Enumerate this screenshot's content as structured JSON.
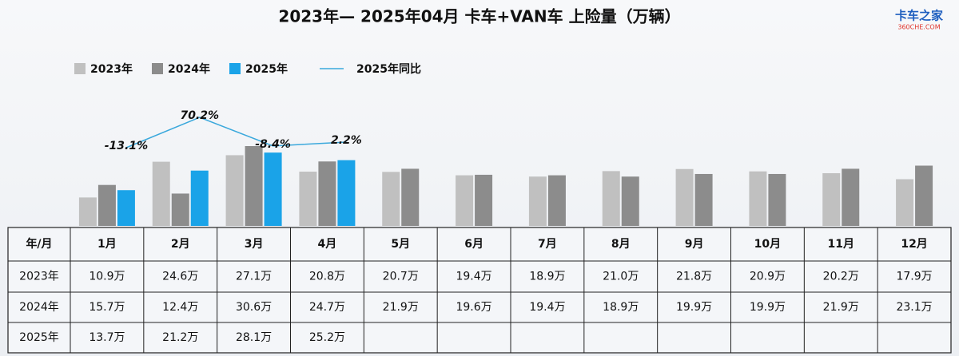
{
  "chart_data": {
    "type": "bar",
    "title": "2023年— 2025年04月 卡车+VAN车 上险量（万辆）",
    "logo": {
      "name": "卡车之家",
      "site": "360CHE.COM"
    },
    "categories": [
      "1月",
      "2月",
      "3月",
      "4月",
      "5月",
      "6月",
      "7月",
      "8月",
      "9月",
      "10月",
      "11月",
      "12月"
    ],
    "table_corner": "年/月",
    "series": [
      {
        "name": "2023年",
        "color": "#c0c0c0",
        "values": [
          10.9,
          24.6,
          27.1,
          20.8,
          20.7,
          19.4,
          18.9,
          21.0,
          21.8,
          20.9,
          20.2,
          17.9
        ],
        "value_labels": [
          "10.9万",
          "24.6万",
          "27.1万",
          "20.8万",
          "20.7万",
          "19.4万",
          "18.9万",
          "21.0万",
          "21.8万",
          "20.9万",
          "20.2万",
          "17.9万"
        ]
      },
      {
        "name": "2024年",
        "color": "#8c8c8c",
        "values": [
          15.7,
          12.4,
          30.6,
          24.7,
          21.9,
          19.6,
          19.4,
          18.9,
          19.9,
          19.9,
          21.9,
          23.1
        ],
        "value_labels": [
          "15.7万",
          "12.4万",
          "30.6万",
          "24.7万",
          "21.9万",
          "19.6万",
          "19.4万",
          "18.9万",
          "19.9万",
          "19.9万",
          "21.9万",
          "23.1万"
        ]
      },
      {
        "name": "2025年",
        "color": "#1aa3e8",
        "values": [
          13.7,
          21.2,
          28.1,
          25.2,
          null,
          null,
          null,
          null,
          null,
          null,
          null,
          null
        ],
        "value_labels": [
          "13.7万",
          "21.2万",
          "28.1万",
          "25.2万",
          null,
          null,
          null,
          null,
          null,
          null,
          null,
          null
        ]
      }
    ],
    "line": {
      "name": "2025年同比",
      "color": "#3aa8dc",
      "axis": "y2",
      "values": [
        -13.1,
        70.2,
        -8.4,
        2.2
      ],
      "value_labels": [
        "-13.1%",
        "70.2%",
        "-8.4%",
        "2.2%"
      ]
    }
  }
}
